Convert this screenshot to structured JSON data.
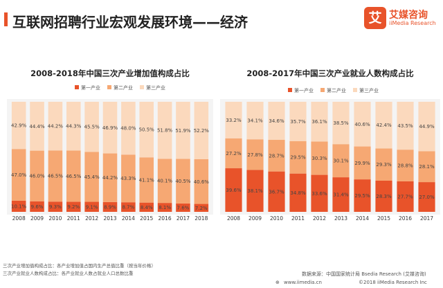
{
  "header": {
    "title": "互联网招聘行业宏观发展环境——经济",
    "logo_mark": "艾",
    "logo_cn": "艾媒咨询",
    "logo_en": "iiMedia Research"
  },
  "colors": {
    "primary": "#e8532a",
    "secondary": "#f6a873",
    "tertiary": "#fbd9bd",
    "background_band": "#f4f4f4"
  },
  "chart_data": [
    {
      "type": "bar",
      "stacked": true,
      "normalized": true,
      "title": "2008-2018年中国三次产业增加值构成占比",
      "categories": [
        "2008",
        "2009",
        "2010",
        "2011",
        "2012",
        "2013",
        "2014",
        "2015",
        "2016",
        "2017",
        "2018"
      ],
      "series": [
        {
          "name": "第一产业",
          "values": [
            10.1,
            9.6,
            9.3,
            9.2,
            9.1,
            8.9,
            8.7,
            8.4,
            8.1,
            7.6,
            7.2
          ],
          "labels": [
            "10.1%",
            "9.6%",
            "9.3%",
            "9.2%",
            "9.1%",
            "8.9%",
            "8.7%",
            "8.4%",
            "8.1%",
            "7.6%",
            "7.2%"
          ],
          "color": "#e8532a"
        },
        {
          "name": "第二产业",
          "values": [
            47.0,
            46.0,
            46.5,
            46.5,
            45.4,
            44.2,
            43.3,
            41.1,
            40.1,
            40.5,
            40.6
          ],
          "labels": [
            "47.0%",
            "46.0%",
            "46.5%",
            "46.5%",
            "45.4%",
            "44.2%",
            "43.3%",
            "41.1%",
            "40.1%",
            "40.5%",
            "40.6%"
          ],
          "color": "#f6a873"
        },
        {
          "name": "第三产业",
          "values": [
            42.9,
            44.4,
            44.2,
            44.3,
            45.5,
            46.9,
            48.0,
            50.5,
            51.8,
            51.9,
            52.2
          ],
          "labels": [
            "42.9%",
            "44.4%",
            "44.2%",
            "44.3%",
            "45.5%",
            "46.9%",
            "48.0%",
            "50.5%",
            "51.8%",
            "51.9%",
            "52.2%"
          ],
          "color": "#fbd9bd"
        }
      ],
      "ylim": [
        0,
        100
      ],
      "legend_position": "top"
    },
    {
      "type": "bar",
      "stacked": true,
      "normalized": true,
      "title": "2008-2017年中国三次产业就业人数构成占比",
      "categories": [
        "2008",
        "2009",
        "2010",
        "2011",
        "2012",
        "2013",
        "2014",
        "2015",
        "2016",
        "2017"
      ],
      "series": [
        {
          "name": "第一产业",
          "values": [
            39.6,
            38.1,
            36.7,
            34.8,
            33.6,
            31.4,
            29.5,
            28.3,
            27.7,
            27.0
          ],
          "labels": [
            "39.6%",
            "38.1%",
            "36.7%",
            "34.8%",
            "33.6%",
            "31.4%",
            "29.5%",
            "28.3%",
            "27.7%",
            "27.0%"
          ],
          "color": "#e8532a"
        },
        {
          "name": "第二产业",
          "values": [
            27.2,
            27.8,
            28.7,
            29.5,
            30.3,
            30.1,
            29.9,
            29.3,
            28.8,
            28.1
          ],
          "labels": [
            "27.2%",
            "27.8%",
            "28.7%",
            "29.5%",
            "30.3%",
            "30.1%",
            "29.9%",
            "29.3%",
            "28.8%",
            "28.1%"
          ],
          "color": "#f6a873"
        },
        {
          "name": "第三产业",
          "values": [
            33.2,
            34.1,
            34.6,
            35.7,
            36.1,
            38.5,
            40.6,
            42.4,
            43.5,
            44.9
          ],
          "labels": [
            "33.2%",
            "34.1%",
            "34.6%",
            "35.7%",
            "36.1%",
            "38.5%",
            "40.6%",
            "42.4%",
            "43.5%",
            "44.9%"
          ],
          "color": "#fbd9bd"
        }
      ],
      "ylim": [
        0,
        100
      ],
      "legend_position": "top"
    }
  ],
  "footnotes": [
    "三次产业增加值构成占比：各产业增加值占国内生产总值比重（按当年价格）",
    "三次产业就业人数构成占比：各产业就业人数占就业人口总数比重"
  ],
  "source": "数据来源：中国国家统计局    Bsedia Research (艾媒咨询)",
  "url": "www.iimedia.cn",
  "copyright": "©2018  iiMedia Research  Inc"
}
